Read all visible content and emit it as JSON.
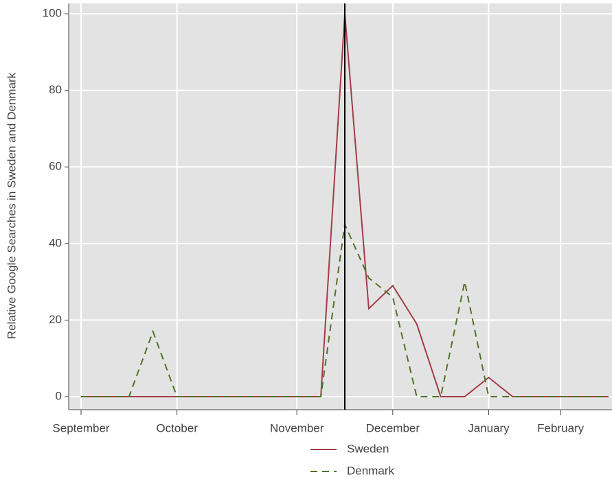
{
  "chart_data": {
    "type": "line",
    "y_label": "Relative Google Searches in Sweden and Denmark",
    "categories": [
      "September",
      null,
      null,
      null,
      "October",
      null,
      null,
      null,
      null,
      "November",
      null,
      null,
      null,
      "December",
      null,
      null,
      null,
      "January",
      null,
      null,
      "February",
      null,
      null
    ],
    "series": [
      {
        "name": "Sweden",
        "color": "#a23c4a",
        "dash": "none",
        "values": [
          0,
          0,
          0,
          0,
          0,
          0,
          0,
          0,
          0,
          0,
          0,
          100,
          23,
          29,
          19,
          0,
          0,
          5,
          0,
          0,
          0,
          0,
          0
        ]
      },
      {
        "name": "Denmark",
        "color": "#4f7326",
        "dash": "10 7",
        "values": [
          0,
          0,
          0,
          17,
          0,
          0,
          0,
          0,
          0,
          0,
          0,
          45,
          31,
          26,
          0,
          0,
          30,
          0,
          0,
          0,
          0,
          0,
          0
        ]
      }
    ],
    "reference_line_index": 11,
    "reference_line_color": "#000000",
    "ylim": [
      -3.4,
      102.7
    ],
    "yticks": [
      0,
      20,
      40,
      60,
      80,
      100
    ],
    "grid": true,
    "panel_color": "#e3e3e3"
  }
}
